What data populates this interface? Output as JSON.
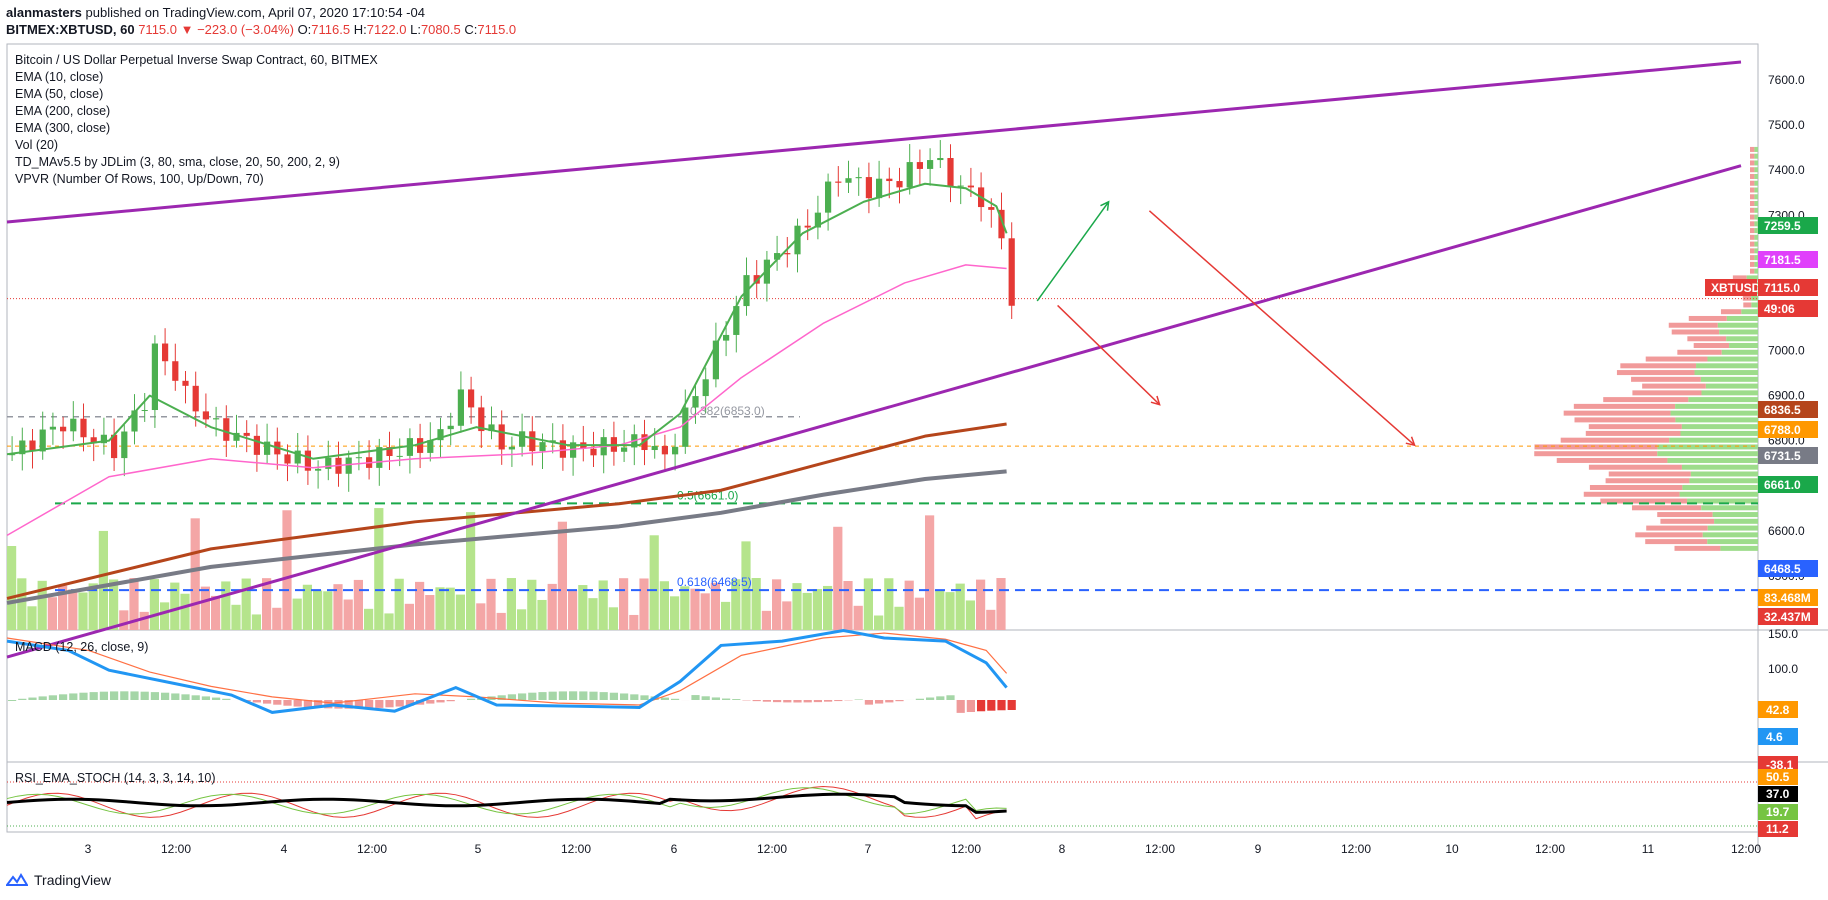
{
  "header": {
    "author": "alanmasters",
    "published_text": "published on TradingView.com, April 07, 2020 17:10:54 -04",
    "symbol": "BITMEX:XBTUSD, 60",
    "change": "7115.0 ▼ −223.0 (−3.04%)",
    "o_label": "O:",
    "o_value": "7116.5",
    "h_label": "H:",
    "h_value": "7122.0",
    "l_label": "L:",
    "l_value": "7080.5",
    "c_label": "C:",
    "c_value": "7115.0"
  },
  "legend": [
    "Bitcoin / US Dollar Perpetual Inverse Swap Contract, 60, BITMEX",
    "EMA (10, close)",
    "EMA (50, close)",
    "EMA (200, close)",
    "EMA (300, close)",
    "Vol (20)",
    "TD_MAv5.5 by JDLim (3, 80, sma, close, 20, 50, 200, 2, 9)",
    "VPVR (Number Of Rows, 100, Up/Down, 70)"
  ],
  "macd_title": "MACD (12, 26, close, 9)",
  "rsi_title": "RSI_EMA_STOCH (14, 3, 3, 14, 10)",
  "footer": {
    "brand": "TradingView"
  },
  "colors": {
    "up": "#26a69a",
    "down": "#ef5350",
    "channel": "#9c27b0",
    "ema10": "#4caf50",
    "ema50": "#ff66cc",
    "ema200": "#b5451b",
    "ema300": "#787b86",
    "fib05": "#1aa84a",
    "fib618": "#2962ff",
    "last": "#e53935"
  },
  "chart_data": {
    "type": "candlestick",
    "symbol": "XBTUSD",
    "timeframe": "60",
    "price_axis": {
      "ticks": [
        "7600.0",
        "7500.0",
        "7400.0",
        "7300.0",
        "7200.0",
        "7100.0",
        "7000.0",
        "6900.0",
        "6800.0",
        "6700.0",
        "6600.0",
        "6500.0",
        "6400.0"
      ],
      "range": [
        6380,
        7680
      ]
    },
    "time_axis": [
      "3",
      "12:00",
      "4",
      "12:00",
      "5",
      "12:00",
      "6",
      "12:00",
      "7",
      "12:00",
      "8",
      "12:00",
      "9",
      "12:00",
      "10",
      "12:00",
      "11",
      "12:00"
    ],
    "price_path": [
      [
        0,
        6770
      ],
      [
        5,
        6840
      ],
      [
        10,
        6780
      ],
      [
        13,
        6890
      ],
      [
        14,
        7000
      ],
      [
        16,
        6950
      ],
      [
        17,
        6900
      ],
      [
        20,
        6830
      ],
      [
        25,
        6780
      ],
      [
        30,
        6740
      ],
      [
        35,
        6760
      ],
      [
        40,
        6790
      ],
      [
        42,
        6810
      ],
      [
        44,
        6900
      ],
      [
        46,
        6840
      ],
      [
        48,
        6790
      ],
      [
        50,
        6800
      ],
      [
        55,
        6780
      ],
      [
        60,
        6790
      ],
      [
        62,
        6800
      ],
      [
        64,
        6760
      ],
      [
        68,
        6950
      ],
      [
        72,
        7150
      ],
      [
        75,
        7210
      ],
      [
        78,
        7280
      ],
      [
        81,
        7390
      ],
      [
        84,
        7360
      ],
      [
        87,
        7380
      ],
      [
        90,
        7430
      ],
      [
        93,
        7360
      ],
      [
        95,
        7340
      ],
      [
        97,
        7250
      ],
      [
        98,
        7115
      ]
    ],
    "ema10": [
      [
        0,
        6770
      ],
      [
        10,
        6800
      ],
      [
        14,
        6900
      ],
      [
        20,
        6830
      ],
      [
        30,
        6760
      ],
      [
        40,
        6790
      ],
      [
        46,
        6830
      ],
      [
        55,
        6790
      ],
      [
        62,
        6790
      ],
      [
        66,
        6860
      ],
      [
        72,
        7120
      ],
      [
        78,
        7260
      ],
      [
        84,
        7330
      ],
      [
        90,
        7370
      ],
      [
        94,
        7360
      ],
      [
        97,
        7320
      ],
      [
        98,
        7260
      ]
    ],
    "ema50": [
      [
        0,
        6590
      ],
      [
        10,
        6720
      ],
      [
        20,
        6760
      ],
      [
        30,
        6740
      ],
      [
        40,
        6760
      ],
      [
        50,
        6770
      ],
      [
        60,
        6790
      ],
      [
        66,
        6830
      ],
      [
        72,
        6940
      ],
      [
        80,
        7060
      ],
      [
        88,
        7150
      ],
      [
        94,
        7190
      ],
      [
        98,
        7182
      ]
    ],
    "ema200": [
      [
        0,
        6450
      ],
      [
        20,
        6560
      ],
      [
        40,
        6620
      ],
      [
        60,
        6660
      ],
      [
        70,
        6690
      ],
      [
        80,
        6750
      ],
      [
        90,
        6810
      ],
      [
        98,
        6837
      ]
    ],
    "ema300": [
      [
        0,
        6440
      ],
      [
        20,
        6520
      ],
      [
        40,
        6570
      ],
      [
        60,
        6610
      ],
      [
        70,
        6640
      ],
      [
        80,
        6680
      ],
      [
        90,
        6715
      ],
      [
        98,
        6732
      ]
    ],
    "channel": [
      {
        "from": [
          0,
          7285
        ],
        "to": [
          170,
          7640
        ]
      },
      {
        "from": [
          0,
          6320
        ],
        "to": [
          170,
          7410
        ]
      }
    ],
    "horizontal_levels": [
      {
        "label": "0.382(6853.0)",
        "value": 6853.0
      },
      {
        "label": "0.5(6661.0)",
        "value": 6661.0
      },
      {
        "label": "0.618(6468.5)",
        "value": 6468.5
      },
      {
        "label": "6788.0",
        "value": 6788.0
      },
      {
        "label": "7115.0",
        "value": 7115.0
      }
    ],
    "arrows": [
      {
        "from": [
          101,
          7110
        ],
        "to": [
          108,
          7330
        ]
      },
      {
        "from": [
          103,
          7100
        ],
        "to": [
          113,
          6880
        ]
      },
      {
        "from": [
          112,
          7310
        ],
        "to": [
          138,
          6790
        ]
      }
    ],
    "price_tags": [
      {
        "text": "7259.5",
        "color": "#1aa84a"
      },
      {
        "text": "7181.5",
        "color": "#e040fb"
      },
      {
        "text": "XBTUSD",
        "color": "#e53935"
      },
      {
        "text": "7115.0",
        "color": "#e53935"
      },
      {
        "text": "49:06",
        "color": "#e53935"
      },
      {
        "text": "6836.5",
        "color": "#b5451b"
      },
      {
        "text": "6788.0",
        "color": "#ff9800"
      },
      {
        "text": "6731.5",
        "color": "#787b86"
      },
      {
        "text": "6661.0",
        "color": "#1aa84a"
      },
      {
        "text": "6468.5",
        "color": "#2962ff"
      },
      {
        "text": "83.468M",
        "color": "#ff9800"
      },
      {
        "text": "32.437M",
        "color": "#e53935"
      }
    ],
    "macd": {
      "axis": [
        "150.0",
        "100.0"
      ],
      "tags": [
        {
          "text": "42.8",
          "color": "#ff9800"
        },
        {
          "text": "4.6",
          "color": "#2196f3"
        },
        {
          "text": "-38.1",
          "color": "#e53935"
        }
      ],
      "macd_line": [
        [
          0,
          95
        ],
        [
          6,
          80
        ],
        [
          10,
          48
        ],
        [
          16,
          28
        ],
        [
          22,
          8
        ],
        [
          26,
          -20
        ],
        [
          32,
          -8
        ],
        [
          38,
          -18
        ],
        [
          44,
          20
        ],
        [
          48,
          -8
        ],
        [
          56,
          -10
        ],
        [
          62,
          -12
        ],
        [
          66,
          30
        ],
        [
          70,
          88
        ],
        [
          76,
          95
        ],
        [
          82,
          112
        ],
        [
          86,
          100
        ],
        [
          92,
          95
        ],
        [
          96,
          60
        ],
        [
          98,
          20
        ]
      ],
      "signal_line": [
        [
          0,
          100
        ],
        [
          8,
          80
        ],
        [
          14,
          45
        ],
        [
          20,
          22
        ],
        [
          26,
          5
        ],
        [
          32,
          -5
        ],
        [
          40,
          10
        ],
        [
          46,
          5
        ],
        [
          54,
          -5
        ],
        [
          62,
          -8
        ],
        [
          66,
          15
        ],
        [
          72,
          72
        ],
        [
          80,
          100
        ],
        [
          86,
          108
        ],
        [
          92,
          98
        ],
        [
          96,
          80
        ],
        [
          98,
          43
        ]
      ]
    },
    "rsi": {
      "tags": [
        {
          "text": "50.5",
          "color": "#ff9800"
        },
        {
          "text": "37.0",
          "color": "#000000"
        },
        {
          "text": "19.7",
          "color": "#76c442"
        },
        {
          "text": "11.2",
          "color": "#e53935"
        }
      ]
    }
  }
}
